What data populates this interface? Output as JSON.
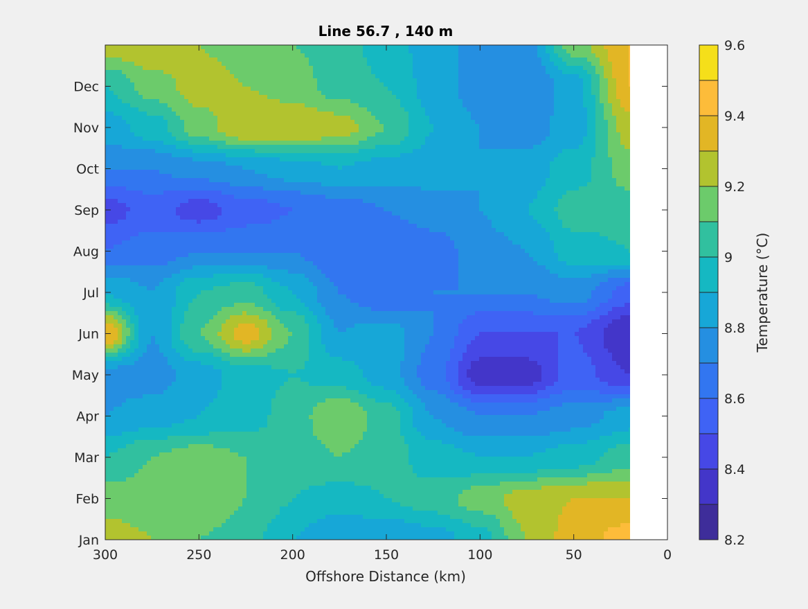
{
  "chart_data": {
    "type": "heatmap",
    "subtype": "filled-contour",
    "title": "Line 56.7 , 140 m",
    "xlabel": "Offshore Distance (km)",
    "ylabel": "",
    "x_axis_reversed": true,
    "xlim": [
      300,
      0
    ],
    "x_ticks": [
      "300",
      "250",
      "200",
      "150",
      "100",
      "50",
      "0"
    ],
    "x_tick_values": [
      300,
      250,
      200,
      150,
      100,
      50,
      0
    ],
    "y_ticks": [
      "Jan",
      "Feb",
      "Mar",
      "Apr",
      "May",
      "Jun",
      "Jul",
      "Aug",
      "Sep",
      "Oct",
      "Nov",
      "Dec"
    ],
    "y_range_months": [
      1,
      13
    ],
    "data_x_extent_km": [
      300,
      20
    ],
    "grid": false,
    "colorbar": {
      "label": "Temperature (°C)",
      "range": [
        8.2,
        9.6
      ],
      "tick_values": [
        8.2,
        8.4,
        8.6,
        8.8,
        9.0,
        9.2,
        9.4,
        9.6
      ],
      "tick_labels": [
        "8.2",
        "8.4",
        "8.6",
        "8.8",
        "9",
        "9.2",
        "9.4",
        "9.6"
      ],
      "levels": [
        8.2,
        8.3,
        8.4,
        8.5,
        8.6,
        8.7,
        8.8,
        8.9,
        9.0,
        9.1,
        9.2,
        9.3,
        9.4,
        9.5,
        9.6
      ],
      "colors": [
        "#3e2d9a",
        "#4336c9",
        "#4648e6",
        "#3f63f5",
        "#3276f0",
        "#258fe1",
        "#17a7d7",
        "#15b8c2",
        "#31c09f",
        "#6ccb6b",
        "#b2c32f",
        "#e2b625",
        "#fdbc3a",
        "#f5df1a"
      ]
    },
    "x_km": [
      300,
      275,
      250,
      225,
      200,
      175,
      150,
      125,
      100,
      75,
      50,
      20
    ],
    "y_months": [
      1,
      2,
      3,
      4,
      5,
      6,
      7,
      8,
      9,
      10,
      11,
      12,
      13
    ],
    "values_degC": [
      [
        9.25,
        9.2,
        9.1,
        9.05,
        8.9,
        8.8,
        8.8,
        8.85,
        8.95,
        9.2,
        9.35,
        9.45
      ],
      [
        9.15,
        9.15,
        9.2,
        9.1,
        9.0,
        8.95,
        9.0,
        9.05,
        9.15,
        9.25,
        9.3,
        9.3
      ],
      [
        9.0,
        9.1,
        9.15,
        9.1,
        9.05,
        9.1,
        9.05,
        8.95,
        8.9,
        8.9,
        8.95,
        9.05
      ],
      [
        8.8,
        8.85,
        8.9,
        8.95,
        9.05,
        9.2,
        9.05,
        8.8,
        8.7,
        8.7,
        8.75,
        8.85
      ],
      [
        8.75,
        8.75,
        8.85,
        8.95,
        9.0,
        8.95,
        8.85,
        8.65,
        8.35,
        8.35,
        8.55,
        8.4
      ],
      [
        9.4,
        8.8,
        9.1,
        9.35,
        9.1,
        8.8,
        8.85,
        8.7,
        8.5,
        8.5,
        8.5,
        8.3
      ],
      [
        8.9,
        8.8,
        9.0,
        9.05,
        8.9,
        8.7,
        8.6,
        8.7,
        8.7,
        8.7,
        8.75,
        8.55
      ],
      [
        8.6,
        8.65,
        8.7,
        8.7,
        8.7,
        8.6,
        8.6,
        8.65,
        8.75,
        8.8,
        8.95,
        9.0
      ],
      [
        8.45,
        8.55,
        8.45,
        8.55,
        8.6,
        8.65,
        8.7,
        8.75,
        8.8,
        8.9,
        9.05,
        9.05
      ],
      [
        8.7,
        8.7,
        8.75,
        8.8,
        8.85,
        8.9,
        8.85,
        8.85,
        8.8,
        8.85,
        8.95,
        9.15
      ],
      [
        8.85,
        8.95,
        9.15,
        9.3,
        9.3,
        9.25,
        9.1,
        8.9,
        8.8,
        8.75,
        8.85,
        9.25
      ],
      [
        9.0,
        9.15,
        9.25,
        9.2,
        9.15,
        9.05,
        9.0,
        8.85,
        8.75,
        8.7,
        8.85,
        9.4
      ],
      [
        9.25,
        9.3,
        9.2,
        9.15,
        9.1,
        9.05,
        8.95,
        8.85,
        8.75,
        8.75,
        9.15,
        9.4
      ]
    ]
  }
}
